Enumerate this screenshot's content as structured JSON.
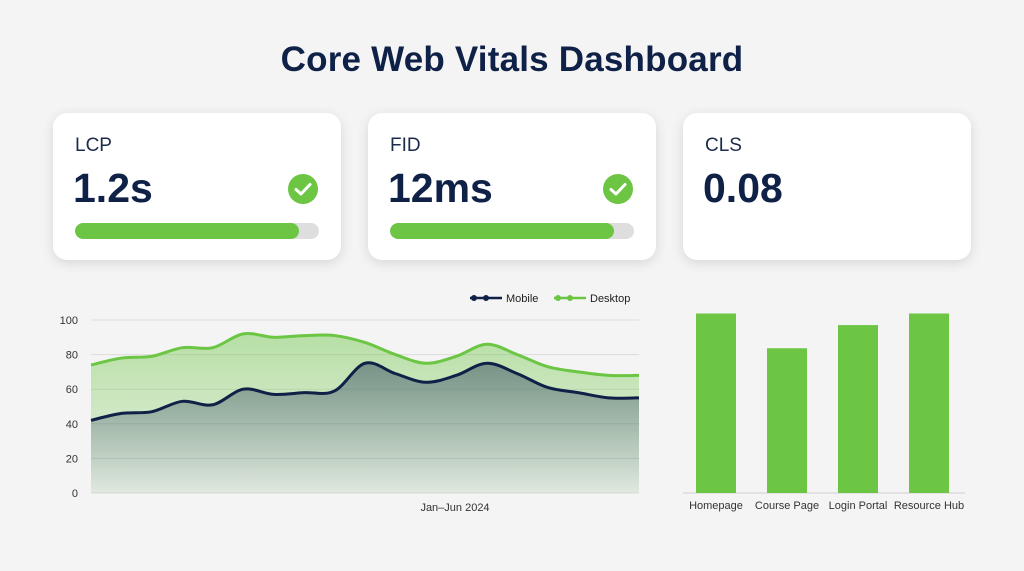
{
  "title": "Core Web Vitals Dashboard",
  "colors": {
    "navy": "#0f2147",
    "green": "#6cc644",
    "check": "#6cc644"
  },
  "metrics": [
    {
      "label": "LCP",
      "value": "1.2s",
      "status_icon": "check-circle-icon",
      "progress": 0.92
    },
    {
      "label": "FID",
      "value": "12ms",
      "status_icon": "check-circle-icon",
      "progress": 0.92
    },
    {
      "label": "CLS",
      "value": "0.08",
      "status_icon": null,
      "progress": null
    }
  ],
  "chart_data": [
    {
      "type": "area",
      "xlabel": "Jan–Jun 2024",
      "ylabel": "",
      "ylim": [
        0,
        100
      ],
      "yticks": [
        0,
        20,
        40,
        60,
        80,
        100
      ],
      "grid": true,
      "legend": "top-right",
      "x": [
        0,
        1,
        2,
        3,
        4,
        5,
        6,
        7,
        8,
        9,
        10,
        11,
        12,
        13,
        14,
        15,
        16,
        17,
        18
      ],
      "series": [
        {
          "name": "Mobile",
          "color": "#0f2147",
          "values": [
            42,
            46,
            47,
            53,
            51,
            60,
            57,
            58,
            59,
            75,
            69,
            64,
            68,
            75,
            69,
            61,
            58,
            55,
            55
          ]
        },
        {
          "name": "Desktop",
          "color": "#6cc644",
          "values": [
            74,
            78,
            79,
            84,
            84,
            92,
            90,
            91,
            91,
            87,
            80,
            75,
            79,
            86,
            80,
            73,
            70,
            68,
            68
          ]
        }
      ]
    },
    {
      "type": "bar",
      "categories": [
        "Homepage",
        "Course Page",
        "Login Portal",
        "Resource Hub"
      ],
      "values": [
        93,
        75,
        87,
        93
      ],
      "ylim": [
        0,
        100
      ],
      "color": "#6cc644"
    }
  ]
}
